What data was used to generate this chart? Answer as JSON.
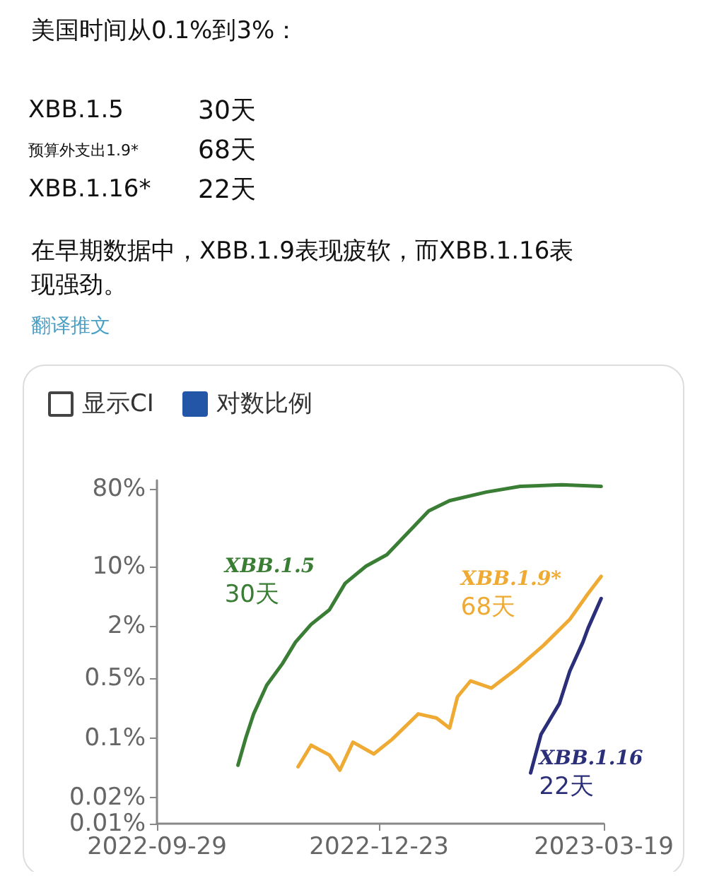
{
  "chart_data": {
    "type": "line",
    "title": "美国时间从0.1%到3%：",
    "subtitle": "在早期数据中，XBB.1.9表现疲软，而XBB.1.16表现强劲。",
    "annotations": [
      "XBB.1.5",
      "30天",
      "预算外支出1.9*",
      "68天",
      "XBB.1.16*",
      "22天",
      "翻译推文",
      "显示CI",
      "对数比例",
      "30天",
      "68天",
      "22天"
    ],
    "log": "y",
    "grid": false,
    "legend": false,
    "marker": "none",
    "line_style": "solid",
    "xlim": [
      "2022-09-29",
      "2023-03-19"
    ],
    "xticks": [
      "2022-09-29",
      "2022-12-23",
      "2023-03-19"
    ],
    "ylim": [
      0.01,
      100
    ],
    "yticks": [
      {
        "value": 0.01,
        "label": "0.01%"
      },
      {
        "value": 0.02,
        "label": "0.02%"
      },
      {
        "value": 0.1,
        "label": "0.1%"
      },
      {
        "value": 0.5,
        "label": "0.5%"
      },
      {
        "value": 2,
        "label": "2%"
      },
      {
        "value": 10,
        "label": "10%"
      },
      {
        "value": 80,
        "label": "80%"
      }
    ],
    "series": [
      {
        "name": "XBB.1.5",
        "color": "#3a7d34",
        "x": [
          "2022-10-30",
          "2022-11-02",
          "2022-11-05",
          "2022-11-10",
          "2022-11-16",
          "2022-11-21",
          "2022-11-27",
          "2022-12-04",
          "2022-12-10",
          "2022-12-18",
          "2022-12-26",
          "2023-01-03",
          "2023-01-11",
          "2023-01-19",
          "2023-02-02",
          "2023-02-15",
          "2023-03-03",
          "2023-03-18"
        ],
        "values": [
          0.048,
          0.1,
          0.19,
          0.41,
          0.73,
          1.3,
          2.1,
          3.1,
          6.3,
          10,
          13.6,
          24.5,
          44,
          58,
          73,
          85,
          89,
          85
        ]
      },
      {
        "name": "XBB.1.9*",
        "color": "#eeaa33",
        "x": [
          "2022-11-22",
          "2022-11-27",
          "2022-12-04",
          "2022-12-08",
          "2022-12-13",
          "2022-12-21",
          "2022-12-28",
          "2023-01-07",
          "2023-01-14",
          "2023-01-19",
          "2023-01-22",
          "2023-01-27",
          "2023-02-04",
          "2023-02-14",
          "2023-02-24",
          "2023-03-06",
          "2023-03-13",
          "2023-03-18"
        ],
        "values": [
          0.046,
          0.082,
          0.063,
          0.042,
          0.089,
          0.065,
          0.096,
          0.19,
          0.17,
          0.13,
          0.3,
          0.46,
          0.38,
          0.65,
          1.2,
          2.4,
          4.8,
          7.6
        ]
      },
      {
        "name": "XBB.1.16",
        "color": "#2b2f7a",
        "x": [
          "2023-02-19",
          "2023-02-23",
          "2023-03-02",
          "2023-03-06",
          "2023-03-11",
          "2023-03-13",
          "2023-03-18"
        ],
        "values": [
          0.039,
          0.11,
          0.25,
          0.6,
          1.3,
          1.9,
          4.2
        ]
      }
    ]
  }
}
